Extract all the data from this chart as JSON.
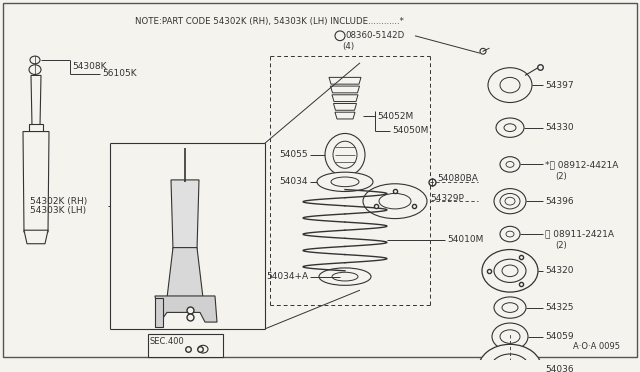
{
  "bg_color": "#f5f3ee",
  "border_color": "#555555",
  "line_color": "#333333",
  "title_line1": "NOTE:PART CODE 54302K (RH), 54303K (LH) INCLUDE............*",
  "note_bolt": "S 08360-5142D",
  "note_qty": "(4)",
  "diagram_id": "A·O·A 0095",
  "figsize": [
    6.4,
    3.72
  ],
  "dpi": 100
}
